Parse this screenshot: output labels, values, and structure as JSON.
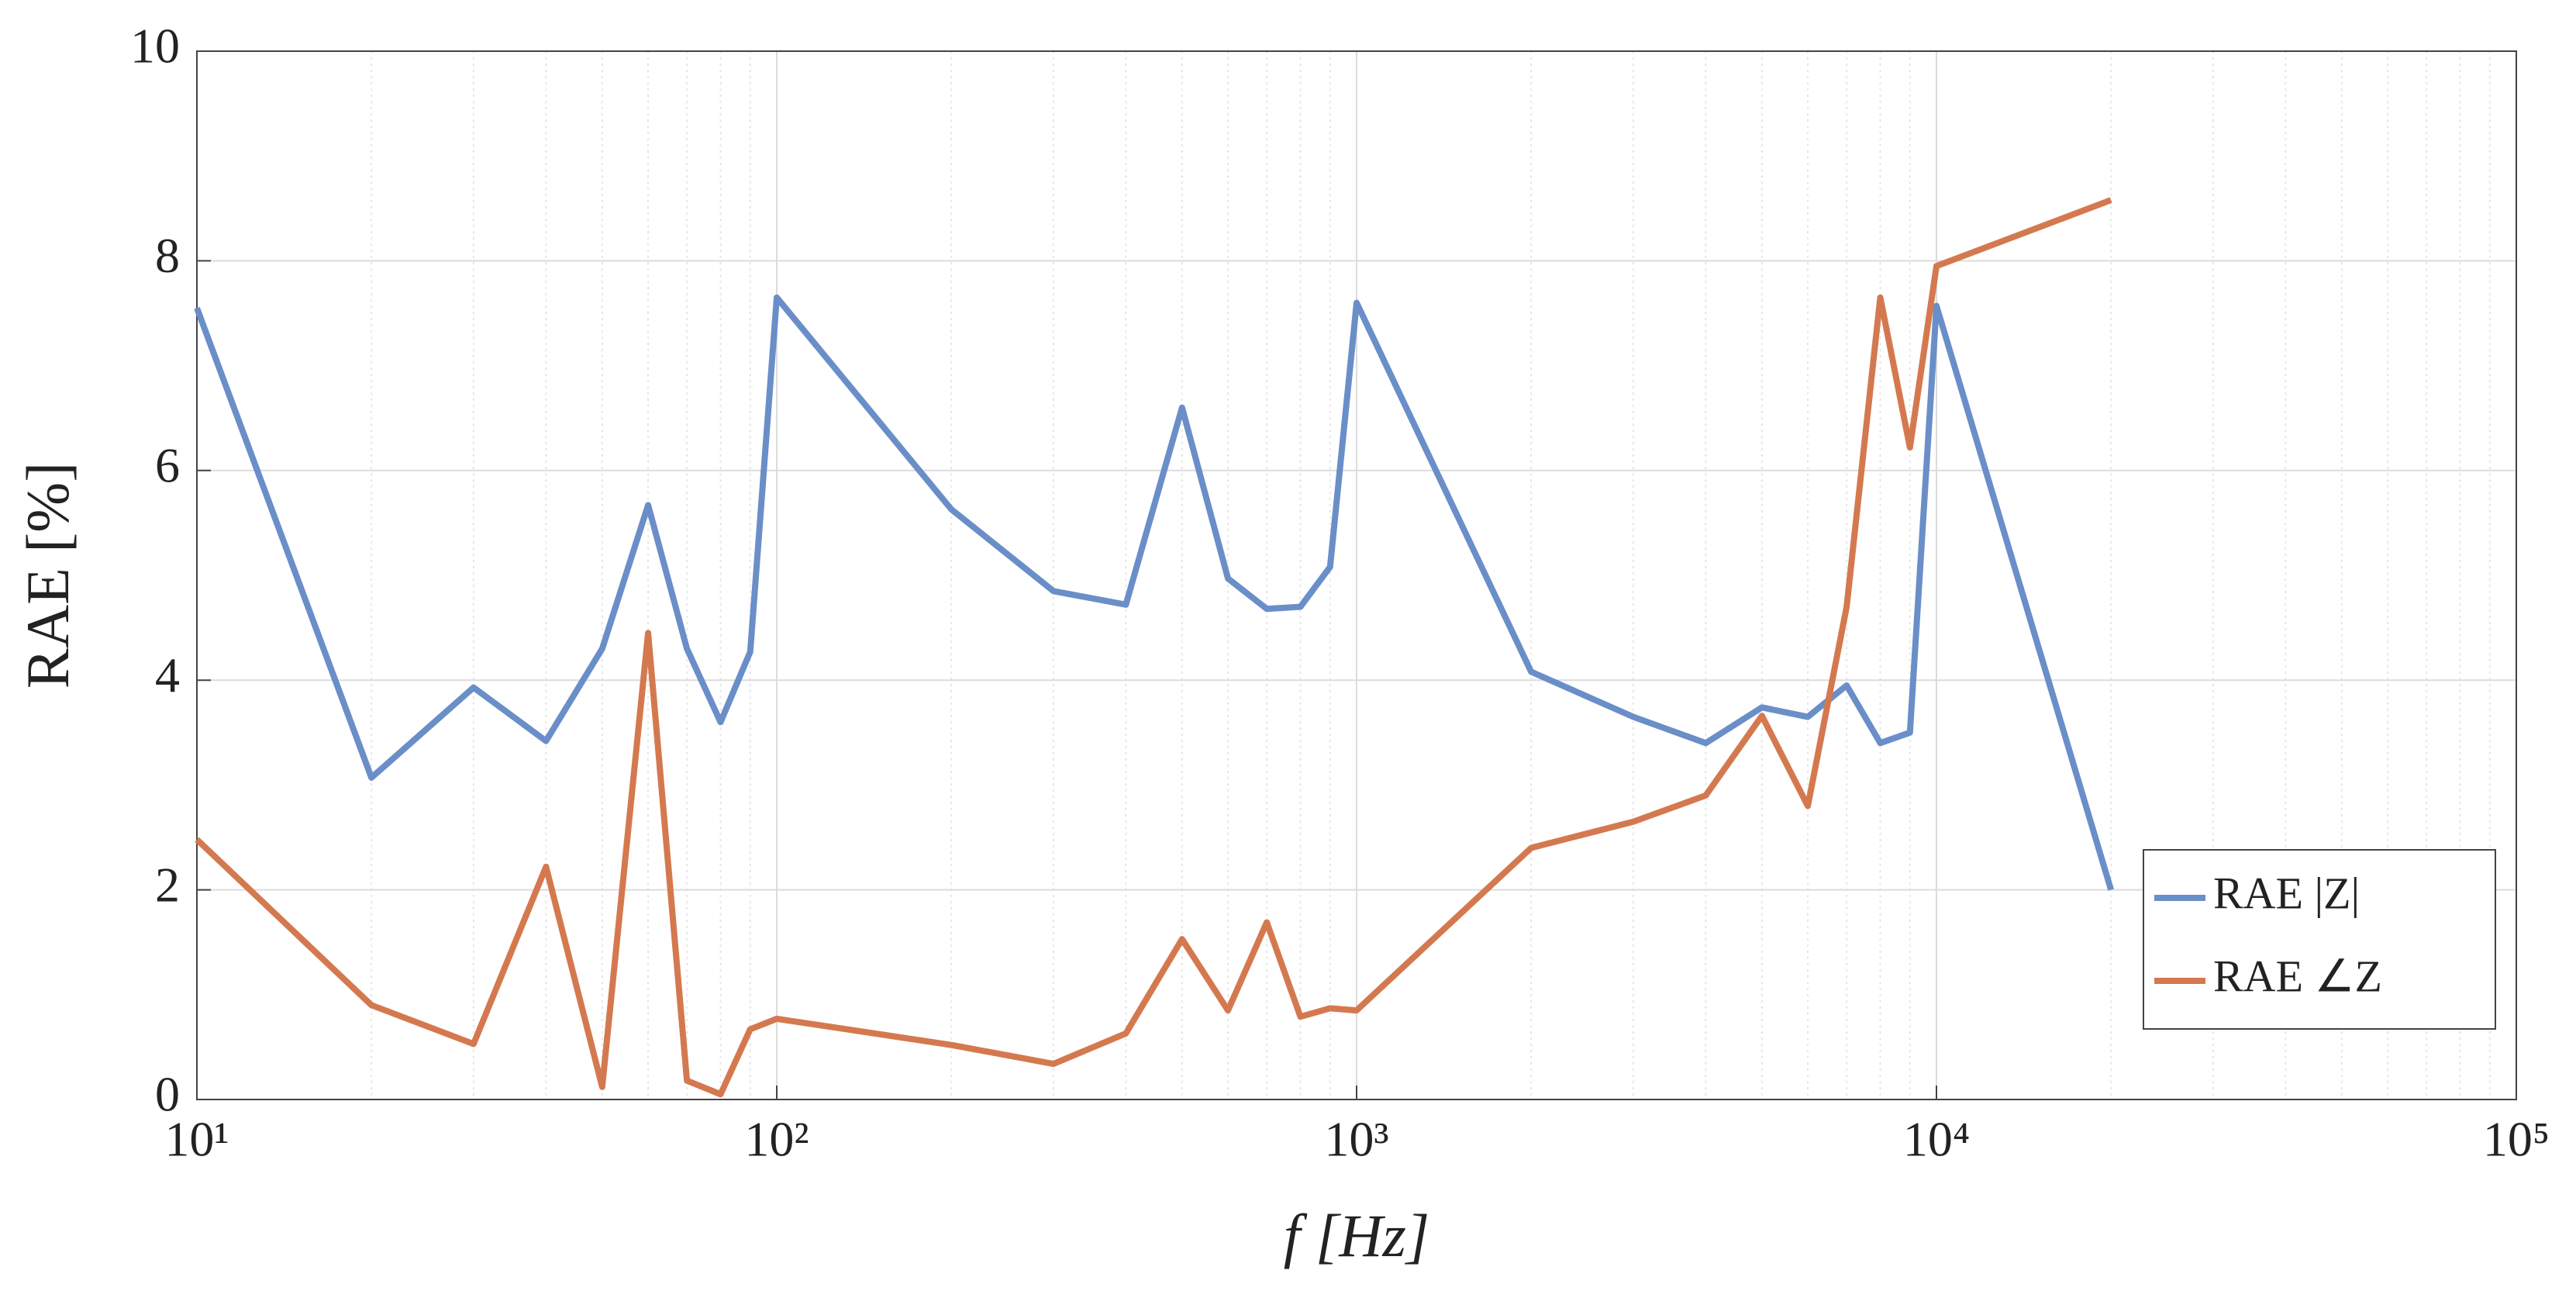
{
  "chart_data": {
    "type": "line",
    "xlabel": "f [Hz]",
    "ylabel": "RAE [%]",
    "x": [
      10,
      20,
      30,
      40,
      50,
      60,
      70,
      80,
      90,
      100,
      200,
      300,
      400,
      500,
      600,
      700,
      800,
      900,
      1000,
      2000,
      3000,
      4000,
      5000,
      6000,
      7000,
      8000,
      9000,
      10000,
      20000
    ],
    "series": [
      {
        "name": "RAE |Z|",
        "color": "#6a8ec8",
        "values": [
          7.55,
          3.07,
          3.93,
          3.42,
          4.3,
          5.67,
          4.3,
          3.6,
          4.27,
          7.65,
          5.63,
          4.85,
          4.72,
          6.6,
          4.97,
          4.68,
          4.7,
          5.08,
          7.6,
          4.08,
          3.65,
          3.4,
          3.74,
          3.65,
          3.95,
          3.4,
          3.5,
          7.57,
          2.0
        ]
      },
      {
        "name": "RAE ∠Z",
        "color": "#d4794f",
        "values": [
          2.48,
          0.9,
          0.53,
          2.22,
          0.12,
          4.45,
          0.18,
          0.05,
          0.67,
          0.77,
          0.52,
          0.34,
          0.63,
          1.53,
          0.85,
          1.69,
          0.79,
          0.87,
          0.85,
          2.4,
          2.65,
          2.9,
          3.66,
          2.8,
          4.7,
          7.65,
          6.22,
          7.95,
          8.58
        ]
      }
    ],
    "xscale": "log",
    "xlim": [
      10,
      100000
    ],
    "xticks": [
      {
        "value": 10,
        "label": "10¹"
      },
      {
        "value": 100,
        "label": "10²"
      },
      {
        "value": 1000,
        "label": "10³"
      },
      {
        "value": 10000,
        "label": "10⁴"
      },
      {
        "value": 100000,
        "label": "10⁵"
      }
    ],
    "ylim": [
      0,
      10
    ],
    "yticks": [
      0,
      2,
      4,
      6,
      8,
      10
    ],
    "grid": true,
    "legend": "lower right"
  }
}
